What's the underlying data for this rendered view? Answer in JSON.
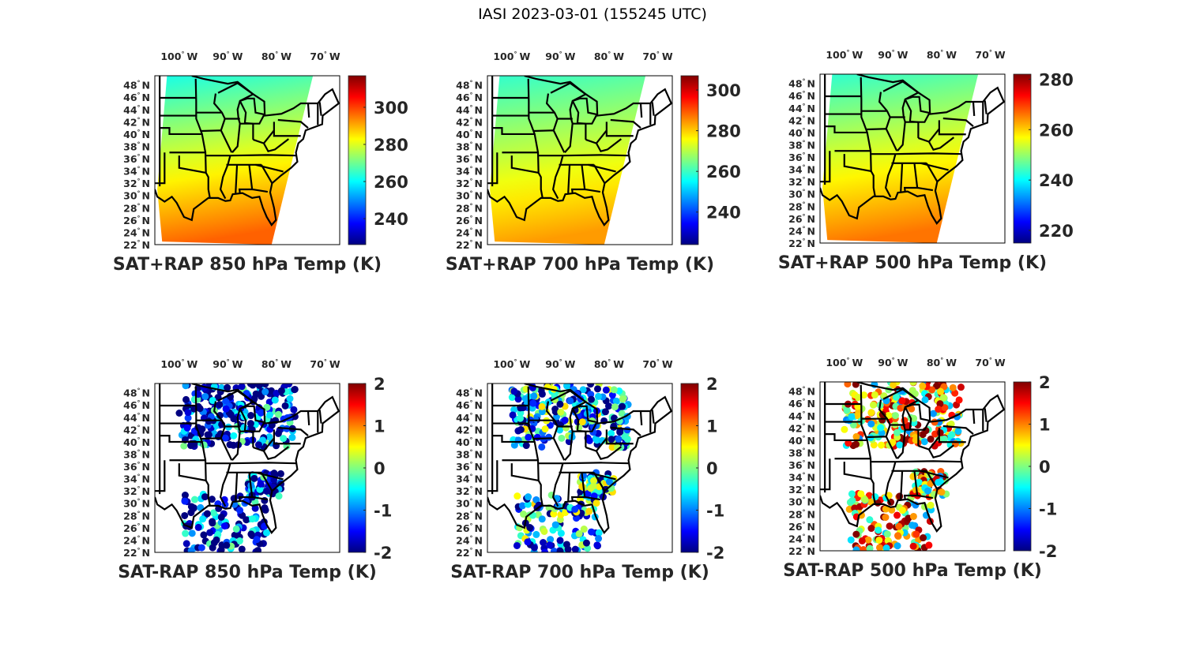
{
  "title": "IASI 2023-03-01 (155245 UTC)",
  "chart_data": [
    {
      "type": "heatmap",
      "title": "SAT+RAP 850 hPa Temp (K)",
      "xticks": [
        "100",
        "90",
        "80",
        "70"
      ],
      "xtick_suffix": "W",
      "yticks": [
        "22",
        "24",
        "26",
        "28",
        "30",
        "32",
        "34",
        "36",
        "38",
        "40",
        "42",
        "44",
        "46",
        "48"
      ],
      "ytick_suffix": "N",
      "xlim": [
        -105,
        -67
      ],
      "ylim": [
        22,
        49.5
      ],
      "colormap": "jet",
      "clim": [
        226,
        317
      ],
      "colorbar_ticks": [
        240,
        260,
        280,
        300
      ],
      "field": {
        "north": 262,
        "south": 297,
        "kind": "gradient"
      }
    },
    {
      "type": "heatmap",
      "title": "SAT+RAP 700 hPa Temp (K)",
      "xticks": [
        "100",
        "90",
        "80",
        "70"
      ],
      "xtick_suffix": "W",
      "yticks": [
        "22",
        "24",
        "26",
        "28",
        "30",
        "32",
        "34",
        "36",
        "38",
        "40",
        "42",
        "44",
        "46",
        "48"
      ],
      "ytick_suffix": "N",
      "xlim": [
        -105,
        -67
      ],
      "ylim": [
        22,
        49.5
      ],
      "colormap": "jet",
      "clim": [
        224,
        307
      ],
      "colorbar_ticks": [
        240,
        260,
        280,
        300
      ],
      "field": {
        "north": 259,
        "south": 284,
        "kind": "gradient"
      }
    },
    {
      "type": "heatmap",
      "title": "SAT+RAP 500 hPa Temp (K)",
      "xticks": [
        "100",
        "90",
        "80",
        "70"
      ],
      "xtick_suffix": "W",
      "yticks": [
        "22",
        "24",
        "26",
        "28",
        "30",
        "32",
        "34",
        "36",
        "38",
        "40",
        "42",
        "44",
        "46",
        "48"
      ],
      "ytick_suffix": "N",
      "xlim": [
        -105,
        -67
      ],
      "ylim": [
        22,
        49.5
      ],
      "colormap": "jet",
      "clim": [
        215,
        282
      ],
      "colorbar_ticks": [
        220,
        240,
        260,
        280
      ],
      "field": {
        "north": 243,
        "south": 266,
        "kind": "gradient"
      }
    },
    {
      "type": "scatter",
      "title": "SAT-RAP 850 hPa Temp (K)",
      "xticks": [
        "100",
        "90",
        "80",
        "70"
      ],
      "xtick_suffix": "W",
      "yticks": [
        "22",
        "24",
        "26",
        "28",
        "30",
        "32",
        "34",
        "36",
        "38",
        "40",
        "42",
        "44",
        "46",
        "48"
      ],
      "ytick_suffix": "N",
      "xlim": [
        -105,
        -67
      ],
      "ylim": [
        22,
        49.5
      ],
      "colormap": "jet",
      "clim": [
        -2,
        2
      ],
      "colorbar_ticks": [
        -2,
        -1,
        0,
        1,
        2
      ],
      "field": {
        "mean": -1.6,
        "kind": "scatter"
      }
    },
    {
      "type": "scatter",
      "title": "SAT-RAP 700 hPa Temp (K)",
      "xticks": [
        "100",
        "90",
        "80",
        "70"
      ],
      "xtick_suffix": "W",
      "yticks": [
        "22",
        "24",
        "26",
        "28",
        "30",
        "32",
        "34",
        "36",
        "38",
        "40",
        "42",
        "44",
        "46",
        "48"
      ],
      "ytick_suffix": "N",
      "xlim": [
        -105,
        -67
      ],
      "ylim": [
        22,
        49.5
      ],
      "colormap": "jet",
      "clim": [
        -2,
        2
      ],
      "colorbar_ticks": [
        -2,
        -1,
        0,
        1,
        2
      ],
      "field": {
        "mean": -0.9,
        "kind": "scatter"
      }
    },
    {
      "type": "scatter",
      "title": "SAT-RAP 500 hPa Temp (K)",
      "xticks": [
        "100",
        "90",
        "80",
        "70"
      ],
      "xtick_suffix": "W",
      "yticks": [
        "22",
        "24",
        "26",
        "28",
        "30",
        "32",
        "34",
        "36",
        "38",
        "40",
        "42",
        "44",
        "46",
        "48"
      ],
      "ytick_suffix": "N",
      "xlim": [
        -105,
        -67
      ],
      "ylim": [
        22,
        49.5
      ],
      "colormap": "jet",
      "clim": [
        -2,
        2
      ],
      "colorbar_ticks": [
        -2,
        -1,
        0,
        1,
        2
      ],
      "field": {
        "mean": 0.6,
        "kind": "scatter"
      }
    }
  ]
}
